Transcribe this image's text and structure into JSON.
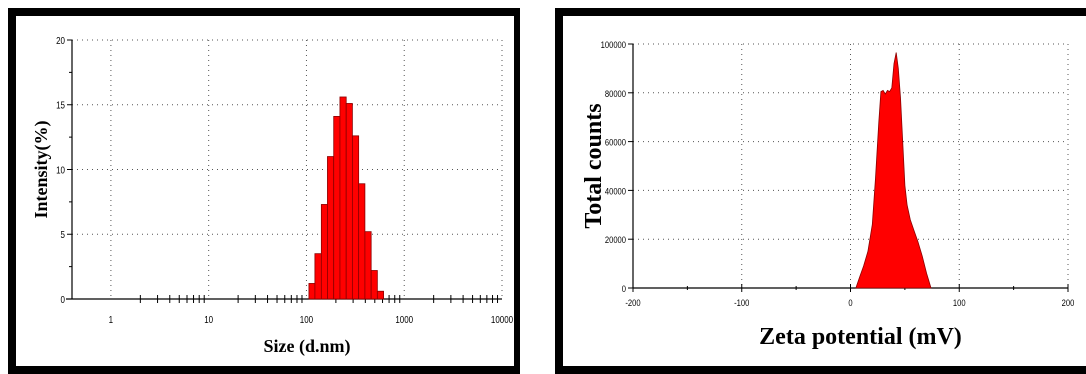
{
  "colors": {
    "fill": "#ff0000",
    "stroke": "#8b0000",
    "frame": "#000000",
    "grid": "#555555"
  },
  "chart_data": [
    {
      "type": "bar",
      "xlabel": "Size (d.nm)",
      "ylabel": "Intensity(%)",
      "xscale": "log",
      "xlim": [
        0.4,
        10000
      ],
      "ylim": [
        0,
        20
      ],
      "x_ticks": [
        "1",
        "10",
        "100",
        "1000",
        "10000"
      ],
      "x_tick_values": [
        1,
        10,
        100,
        1000,
        10000
      ],
      "y_ticks": [
        "0",
        "5",
        "10",
        "15",
        "20"
      ],
      "y_tick_values": [
        0,
        5,
        10,
        15,
        20
      ],
      "grid": true,
      "bins": [
        {
          "x0": 106,
          "x1": 122,
          "y": 1.2
        },
        {
          "x0": 122,
          "x1": 142,
          "y": 3.5
        },
        {
          "x0": 142,
          "x1": 164,
          "y": 7.3
        },
        {
          "x0": 164,
          "x1": 190,
          "y": 11.0
        },
        {
          "x0": 190,
          "x1": 220,
          "y": 14.1
        },
        {
          "x0": 220,
          "x1": 255,
          "y": 15.6
        },
        {
          "x0": 255,
          "x1": 295,
          "y": 15.1
        },
        {
          "x0": 295,
          "x1": 342,
          "y": 12.6
        },
        {
          "x0": 342,
          "x1": 396,
          "y": 8.9
        },
        {
          "x0": 396,
          "x1": 459,
          "y": 5.2
        },
        {
          "x0": 459,
          "x1": 531,
          "y": 2.2
        },
        {
          "x0": 531,
          "x1": 615,
          "y": 0.6
        }
      ]
    },
    {
      "type": "area",
      "xlabel": "Zeta potential (mV)",
      "ylabel": "Total counts",
      "xlim": [
        -200,
        200
      ],
      "ylim": [
        0,
        100000
      ],
      "x_ticks": [
        "-200",
        "-100",
        "0",
        "100",
        "200"
      ],
      "x_tick_values": [
        -200,
        -100,
        0,
        100,
        200
      ],
      "y_ticks": [
        "0",
        "20000",
        "40000",
        "60000",
        "80000",
        "100000"
      ],
      "y_tick_values": [
        0,
        20000,
        40000,
        60000,
        80000,
        100000
      ],
      "grid": true,
      "x": [
        5,
        8,
        12,
        16,
        20,
        23,
        26,
        28,
        30,
        32,
        34,
        36,
        38,
        40,
        42,
        44,
        46,
        48,
        50,
        52,
        55,
        58,
        62,
        66,
        70,
        74
      ],
      "y": [
        0,
        4000,
        9000,
        15000,
        26000,
        45000,
        68000,
        80500,
        81000,
        79500,
        81000,
        80500,
        82000,
        92000,
        96500,
        90000,
        78000,
        60000,
        42000,
        34000,
        28000,
        24000,
        19000,
        13000,
        6000,
        0
      ]
    }
  ]
}
